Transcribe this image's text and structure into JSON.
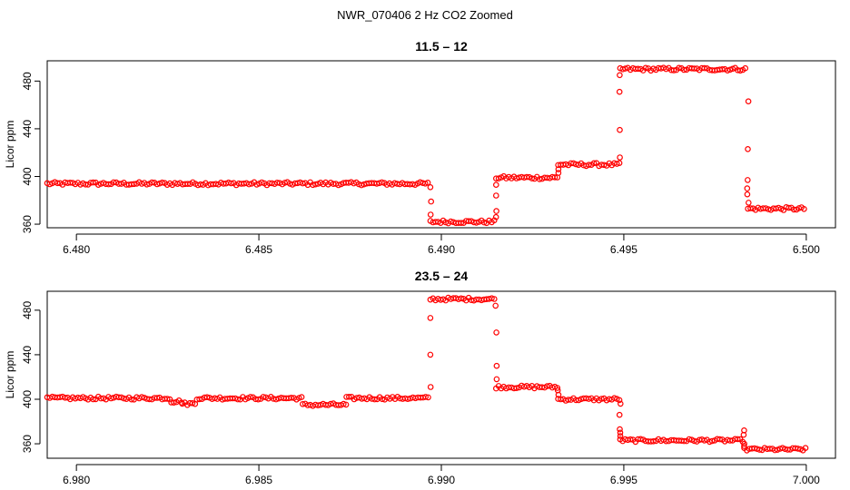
{
  "page_title": "NWR_070406  2 Hz CO2 Zoomed",
  "colors": {
    "points": "#ff0000",
    "axes": "#000000",
    "background": "#ffffff"
  },
  "chart_data": [
    {
      "type": "scatter",
      "title": "11.5 – 12",
      "xlabel": "",
      "ylabel": "Licor ppm",
      "xlim": [
        6.4792,
        6.5008
      ],
      "ylim": [
        357,
        497
      ],
      "x_ticks": [
        6.48,
        6.485,
        6.49,
        6.495,
        6.5
      ],
      "x_tick_labels": [
        "6.480",
        "6.485",
        "6.490",
        "6.495",
        "6.500"
      ],
      "y_ticks": [
        360,
        400,
        440,
        480
      ],
      "y_tick_labels": [
        "360",
        "400",
        "440",
        "480"
      ],
      "grid": false,
      "marker": "open-circle",
      "segments": [
        {
          "x_start": 6.4792,
          "x_end": 6.4897,
          "y": 394
        },
        {
          "x_start": 6.4897,
          "x_end": 6.4915,
          "y": 362
        },
        {
          "x_start": 6.4915,
          "x_end": 6.4932,
          "y": 399
        },
        {
          "x_start": 6.4932,
          "x_end": 6.4949,
          "y": 410
        },
        {
          "x_start": 6.4949,
          "x_end": 6.4984,
          "y": 490
        },
        {
          "x_start": 6.4984,
          "x_end": 6.5,
          "y": 373
        }
      ],
      "transitions": [
        {
          "x": 6.4897,
          "y": [
            391,
            379,
            368
          ]
        },
        {
          "x": 6.4915,
          "y": [
            366,
            371,
            384,
            393
          ]
        },
        {
          "x": 6.4932,
          "y": [
            403,
            406
          ]
        },
        {
          "x": 6.4949,
          "y": [
            416,
            439,
            471,
            485
          ]
        },
        {
          "x": 6.4984,
          "y": [
            463,
            423,
            397,
            390,
            385,
            378
          ]
        }
      ]
    },
    {
      "type": "scatter",
      "title": "23.5 – 24",
      "xlabel": "",
      "ylabel": "Licor ppm",
      "xlim": [
        6.9792,
        7.0008
      ],
      "ylim": [
        347,
        497
      ],
      "x_ticks": [
        6.98,
        6.985,
        6.99,
        6.995,
        7.0
      ],
      "x_tick_labels": [
        "6.980",
        "6.985",
        "6.990",
        "6.995",
        "7.000"
      ],
      "y_ticks": [
        360,
        400,
        440,
        480
      ],
      "y_tick_labels": [
        "360",
        "400",
        "440",
        "480"
      ],
      "grid": false,
      "marker": "open-circle",
      "segments": [
        {
          "x_start": 6.9792,
          "x_end": 6.9826,
          "y": 401
        },
        {
          "x_start": 6.9826,
          "x_end": 6.9829,
          "y": 398
        },
        {
          "x_start": 6.9829,
          "x_end": 6.9833,
          "y": 396
        },
        {
          "x_start": 6.9833,
          "x_end": 6.9862,
          "y": 401
        },
        {
          "x_start": 6.9862,
          "x_end": 6.9874,
          "y": 395
        },
        {
          "x_start": 6.9874,
          "x_end": 6.9897,
          "y": 401
        },
        {
          "x_start": 6.9897,
          "x_end": 6.9915,
          "y": 490
        },
        {
          "x_start": 6.9915,
          "x_end": 6.9932,
          "y": 411
        },
        {
          "x_start": 6.9932,
          "x_end": 6.9949,
          "y": 400
        },
        {
          "x_start": 6.9949,
          "x_end": 6.9983,
          "y": 363
        },
        {
          "x_start": 6.9983,
          "x_end": 7.0,
          "y": 355
        }
      ],
      "transitions": [
        {
          "x": 6.9897,
          "y": [
            411,
            440,
            473
          ]
        },
        {
          "x": 6.9915,
          "y": [
            484,
            460,
            430,
            418
          ]
        },
        {
          "x": 6.9932,
          "y": [
            408,
            404
          ]
        },
        {
          "x": 6.9949,
          "y": [
            396,
            386,
            373,
            370,
            367
          ]
        },
        {
          "x": 6.9983,
          "y": [
            372,
            368,
            360,
            358
          ]
        }
      ]
    }
  ]
}
